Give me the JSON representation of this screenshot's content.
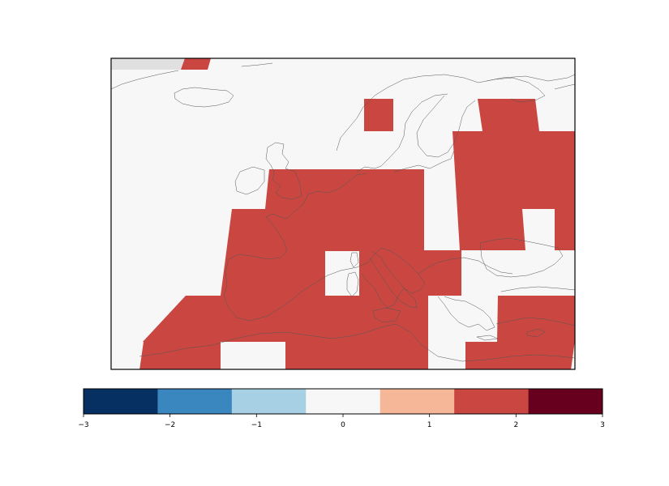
{
  "map": {
    "background_color": "#f7f7f7",
    "coastline_color": "#555555",
    "missing_color": "#e0e0e0",
    "positive_anomaly_color": "#ca4741"
  },
  "colorbar": {
    "vmin": -3,
    "vmax": 3,
    "bins": [
      {
        "from": -3.0,
        "to": -2.143,
        "color": "#053061"
      },
      {
        "from": -2.143,
        "to": -1.286,
        "color": "#3a86bf"
      },
      {
        "from": -1.286,
        "to": -0.429,
        "color": "#a7d0e4"
      },
      {
        "from": -0.429,
        "to": 0.429,
        "color": "#f7f7f7"
      },
      {
        "from": 0.429,
        "to": 1.286,
        "color": "#f6b799"
      },
      {
        "from": 1.286,
        "to": 2.143,
        "color": "#ca4741"
      },
      {
        "from": 2.143,
        "to": 3.0,
        "color": "#67001f"
      }
    ],
    "ticks": [
      {
        "value": -3,
        "label": "−3"
      },
      {
        "value": -2,
        "label": "−2"
      },
      {
        "value": -1,
        "label": "−1"
      },
      {
        "value": 0,
        "label": "0"
      },
      {
        "value": 1,
        "label": "1"
      },
      {
        "value": 2,
        "label": "2"
      },
      {
        "value": 3,
        "label": "3"
      }
    ]
  }
}
